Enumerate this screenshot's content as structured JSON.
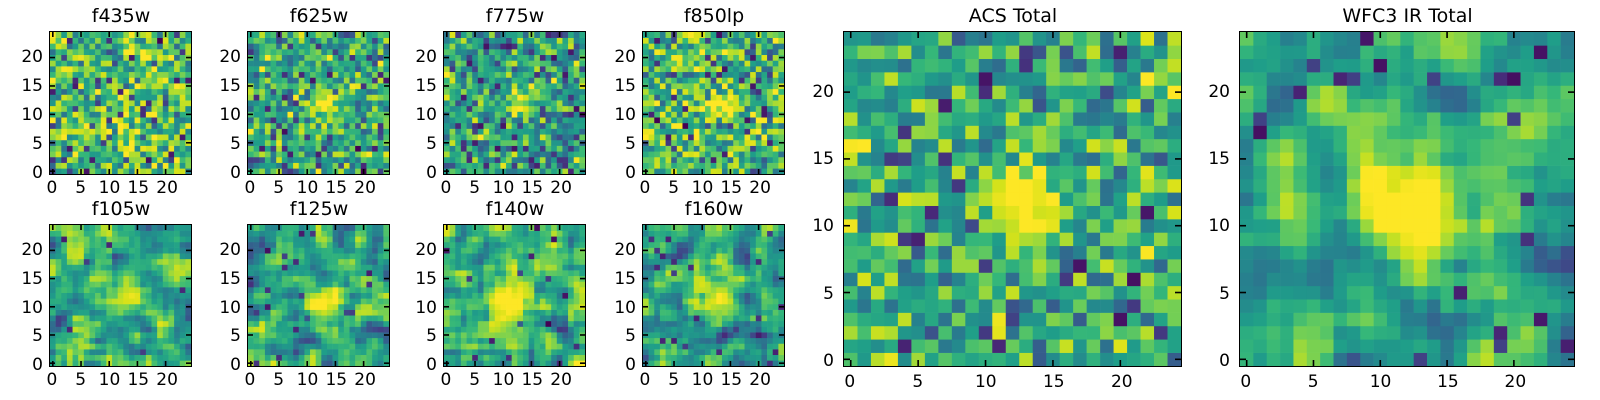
{
  "figure": {
    "background": "#ffffff",
    "text_color": "#000000",
    "spine_color": "#000000"
  },
  "chart_data": {
    "type": "heatmap",
    "colormap": "viridis",
    "colormap_anchors": [
      [
        0.0,
        "#440154"
      ],
      [
        0.1,
        "#482878"
      ],
      [
        0.2,
        "#3e4a89"
      ],
      [
        0.3,
        "#31688e"
      ],
      [
        0.4,
        "#26828e"
      ],
      [
        0.5,
        "#1f9e89"
      ],
      [
        0.6,
        "#35b779"
      ],
      [
        0.7,
        "#6ece58"
      ],
      [
        0.8,
        "#b5de2b"
      ],
      [
        0.9,
        "#d8e219"
      ],
      [
        1.0,
        "#fde725"
      ]
    ],
    "grid_size": 25,
    "value_range": [
      0,
      1
    ],
    "axes": {
      "x_ticks": [
        0,
        5,
        10,
        15,
        20
      ],
      "y_ticks": [
        0,
        5,
        10,
        15,
        20
      ],
      "extent": [
        -0.5,
        24.5
      ],
      "tick_direction": "in",
      "ticks_all_sides": true,
      "grid": false
    },
    "panels": [
      {
        "id": "f435w",
        "title": "f435w",
        "row": 0,
        "col": 0,
        "size": "small",
        "seed": 11,
        "background": 0.63,
        "noise_std": 0.2,
        "smooth": false,
        "dark_outlier_fraction": 0.05,
        "source": {
          "x": 12.5,
          "y": 11.5,
          "amplitude": 0.06,
          "sigma": 1.5
        },
        "spots": []
      },
      {
        "id": "f625w",
        "title": "f625w",
        "row": 0,
        "col": 1,
        "size": "small",
        "seed": 22,
        "background": 0.55,
        "noise_std": 0.18,
        "smooth": false,
        "dark_outlier_fraction": 0.04,
        "source": {
          "x": 13.0,
          "y": 11.8,
          "amplitude": 0.55,
          "sigma": 1.5
        },
        "spots": []
      },
      {
        "id": "f775w",
        "title": "f775w",
        "row": 0,
        "col": 2,
        "size": "small",
        "seed": 33,
        "background": 0.5,
        "noise_std": 0.18,
        "smooth": false,
        "dark_outlier_fraction": 0.05,
        "source": {
          "x": 12.8,
          "y": 11.8,
          "amplitude": 0.55,
          "sigma": 1.7
        },
        "spots": [
          {
            "x": 0,
            "y": 16.5,
            "amplitude": 0.4,
            "sigma": 1.1
          }
        ]
      },
      {
        "id": "f850lp",
        "title": "f850lp",
        "row": 0,
        "col": 3,
        "size": "small",
        "seed": 44,
        "background": 0.6,
        "noise_std": 0.2,
        "smooth": false,
        "dark_outlier_fraction": 0.05,
        "source": {
          "x": 12.8,
          "y": 11.8,
          "amplitude": 0.5,
          "sigma": 1.5
        },
        "spots": []
      },
      {
        "id": "f105w",
        "title": "f105w",
        "row": 1,
        "col": 0,
        "size": "small",
        "seed": 55,
        "background": 0.55,
        "noise_std": 0.38,
        "smooth": true,
        "dark_outlier_fraction": 0.03,
        "source": {
          "x": 12.3,
          "y": 11.5,
          "amplitude": 0.45,
          "sigma": 1.8
        },
        "spots": [
          {
            "x": 1.5,
            "y": 8.0,
            "amplitude": -0.5,
            "sigma": 1.2
          }
        ]
      },
      {
        "id": "f125w",
        "title": "f125w",
        "row": 1,
        "col": 1,
        "size": "small",
        "seed": 66,
        "background": 0.55,
        "noise_std": 0.38,
        "smooth": true,
        "dark_outlier_fraction": 0.03,
        "source": {
          "x": 12.5,
          "y": 11.5,
          "amplitude": 0.55,
          "sigma": 2.1
        },
        "spots": []
      },
      {
        "id": "f140w",
        "title": "f140w",
        "row": 1,
        "col": 2,
        "size": "small",
        "seed": 77,
        "background": 0.6,
        "noise_std": 0.38,
        "smooth": true,
        "dark_outlier_fraction": 0.03,
        "source": {
          "x": 12.0,
          "y": 11.0,
          "amplitude": 0.45,
          "sigma": 2.4
        },
        "spots": [
          {
            "x": 20.5,
            "y": 6.0,
            "amplitude": -0.45,
            "sigma": 1.5
          },
          {
            "x": 20.0,
            "y": 0.0,
            "amplitude": -0.3,
            "sigma": 1.0
          }
        ]
      },
      {
        "id": "f160w",
        "title": "f160w",
        "row": 1,
        "col": 3,
        "size": "small",
        "seed": 88,
        "background": 0.53,
        "noise_std": 0.4,
        "smooth": true,
        "dark_outlier_fraction": 0.04,
        "source": {
          "x": 12.3,
          "y": 11.3,
          "amplitude": 0.52,
          "sigma": 2.0
        },
        "spots": []
      },
      {
        "id": "acs_total",
        "title": "ACS Total",
        "row": 0,
        "col": 4,
        "size": "large",
        "seed": 99,
        "background": 0.55,
        "noise_std": 0.17,
        "smooth": false,
        "dark_outlier_fraction": 0.04,
        "source": {
          "x": 12.8,
          "y": 11.8,
          "amplitude": 0.6,
          "sigma": 1.9
        },
        "spots": [
          {
            "x": 0,
            "y": 16.5,
            "amplitude": 0.35,
            "sigma": 1.2
          }
        ]
      },
      {
        "id": "wfc3_ir_total",
        "title": "WFC3 IR Total",
        "row": 0,
        "col": 5,
        "size": "large",
        "seed": 110,
        "background": 0.52,
        "noise_std": 0.34,
        "smooth": true,
        "dark_outlier_fraction": 0.03,
        "source": {
          "x": 12.3,
          "y": 11.5,
          "amplitude": 0.75,
          "sigma": 2.4
        },
        "spots": [
          {
            "x": 2.8,
            "y": 12.0,
            "amplitude": 0.3,
            "sigma": 1.1
          }
        ]
      }
    ]
  }
}
